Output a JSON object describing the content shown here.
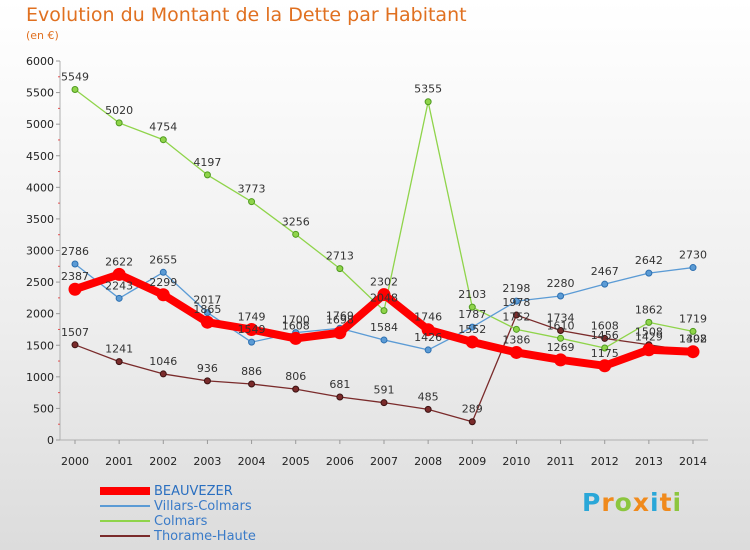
{
  "title": "Evolution du Montant de la Dette par Habitant",
  "subtitle": "(en €)",
  "logo": {
    "letters": [
      "P",
      "r",
      "o",
      "x",
      "i",
      "t",
      "i"
    ],
    "colors": [
      "#2aa7d8",
      "#f08a1c",
      "#8cc63e",
      "#f08a1c",
      "#2aa7d8",
      "#f08a1c",
      "#8cc63e"
    ]
  },
  "chart_data": {
    "type": "line",
    "title": "Evolution du Montant de la Dette par Habitant",
    "ylabel": "(en €)",
    "xlabel": "",
    "x": [
      "2000",
      "2001",
      "2002",
      "2003",
      "2004",
      "2005",
      "2006",
      "2007",
      "2008",
      "2009",
      "2010",
      "2011",
      "2012",
      "2013",
      "2014"
    ],
    "ylim": [
      0,
      6000
    ],
    "yticks": [
      0,
      500,
      1000,
      1500,
      2000,
      2500,
      3000,
      3500,
      4000,
      4500,
      5000,
      5500,
      6000
    ],
    "grid": false,
    "legend_position": "bottom-left",
    "series": [
      {
        "name": "BEAUVEZER",
        "color": "#ff0000",
        "values": [
          2387,
          2622,
          2299,
          1865,
          1749,
          1608,
          1698,
          2302,
          1746,
          1552,
          1386,
          1269,
          1175,
          1429,
          1398
        ]
      },
      {
        "name": "Villars-Colmars",
        "color": "#5b9bd5",
        "values": [
          2786,
          2243,
          2655,
          2017,
          1549,
          1700,
          1769,
          1584,
          1426,
          1787,
          2198,
          2280,
          2467,
          2642,
          2730
        ]
      },
      {
        "name": "Colmars",
        "color": "#8fd44a",
        "values": [
          5549,
          5020,
          4754,
          4197,
          3773,
          3256,
          2713,
          2048,
          5355,
          2103,
          1752,
          1610,
          1456,
          1862,
          1719
        ]
      },
      {
        "name": "Thorame-Haute",
        "color": "#7a2b2b",
        "values": [
          1507,
          1241,
          1046,
          936,
          886,
          806,
          681,
          591,
          485,
          289,
          1978,
          1734,
          1608,
          1508,
          1402
        ]
      }
    ]
  }
}
